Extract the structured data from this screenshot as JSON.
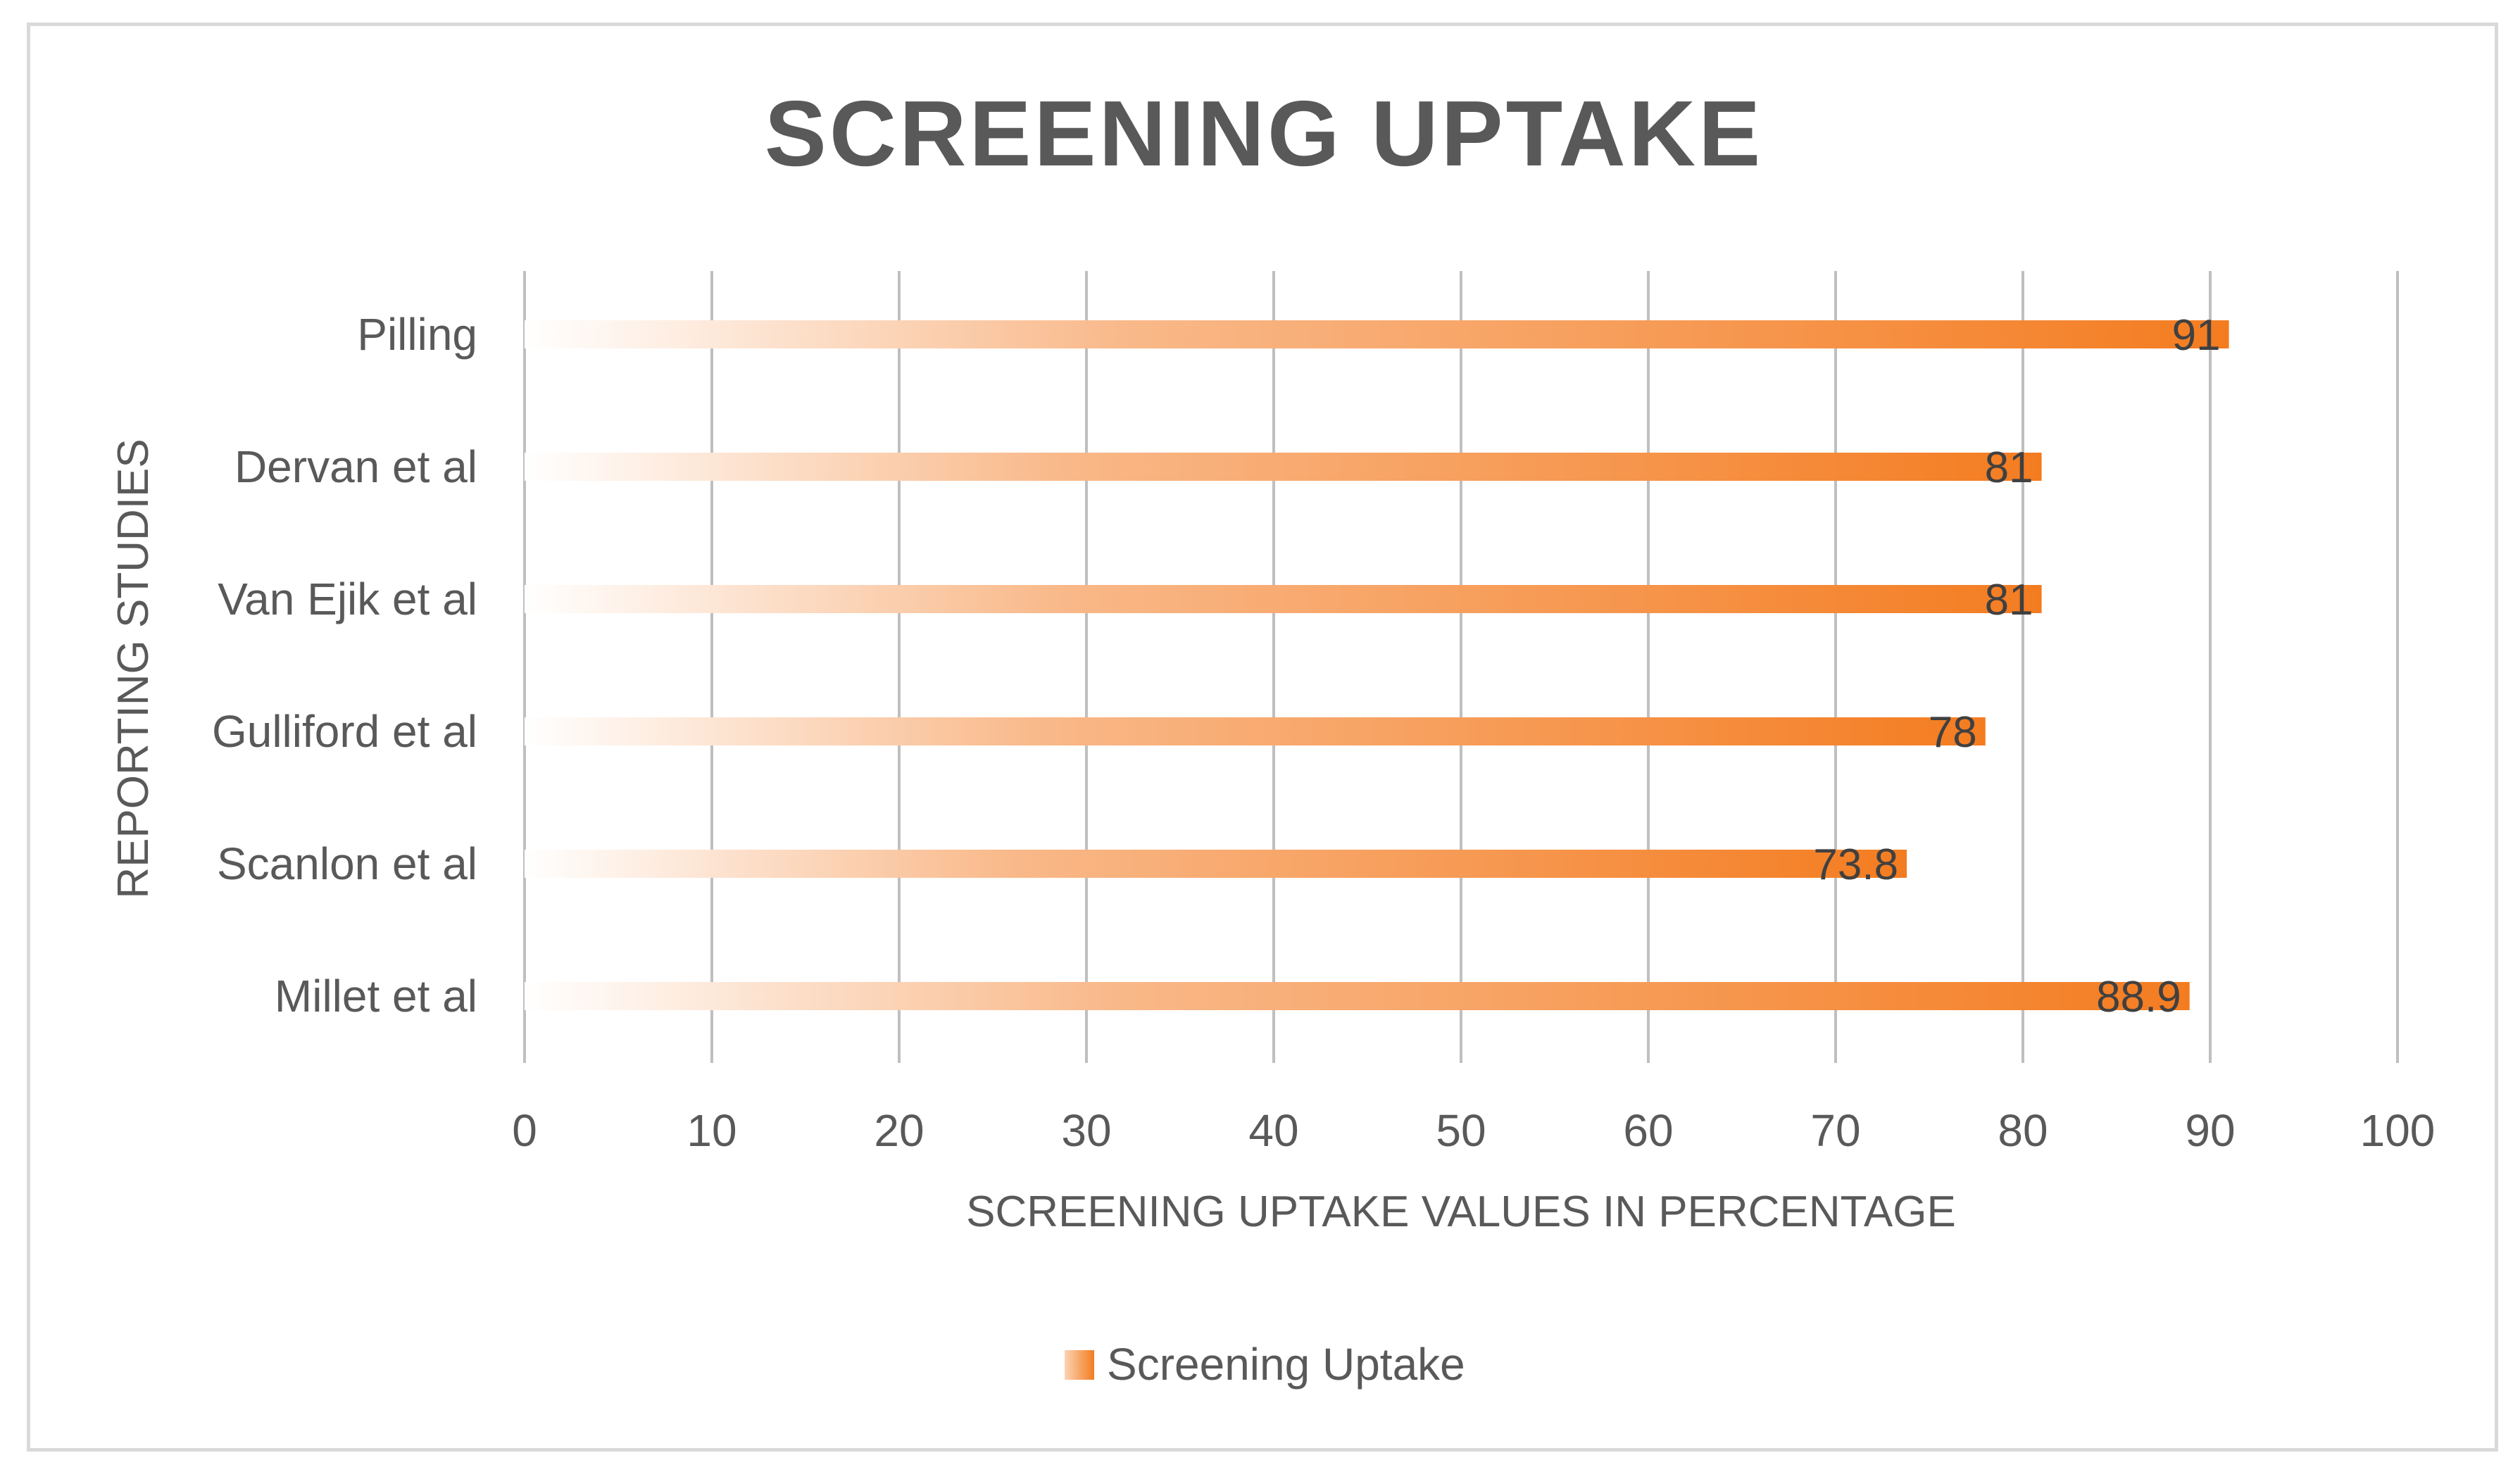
{
  "chart_data": {
    "type": "bar",
    "orientation": "horizontal",
    "title": "SCREENING UPTAKE",
    "xlabel": "SCREENING UPTAKE VALUES IN PERCENTAGE",
    "ylabel": "REPORTING STUDIES",
    "categories": [
      "Pilling",
      "Dervan et al",
      "Van Ejik et al",
      "Gulliford et al",
      "Scanlon et al",
      "Millet et al"
    ],
    "series": [
      {
        "name": "Screening Uptake",
        "values": [
          91,
          81,
          81,
          78,
          73.8,
          88.9
        ]
      }
    ],
    "data_labels": [
      "91",
      "81",
      "81",
      "78",
      "73.8",
      "88.9"
    ],
    "xlim": [
      0,
      100
    ],
    "xticks": [
      0,
      10,
      20,
      30,
      40,
      50,
      60,
      70,
      80,
      90,
      100
    ],
    "xtick_labels": [
      "0",
      "10",
      "20",
      "30",
      "40",
      "50",
      "60",
      "70",
      "80",
      "90",
      "100"
    ],
    "grid": "vertical",
    "legend": "bottom",
    "colors": {
      "bar_start": "#ffffff",
      "bar_end": "#f47c20",
      "grid": "#bfbfbf",
      "text": "#595959"
    }
  }
}
